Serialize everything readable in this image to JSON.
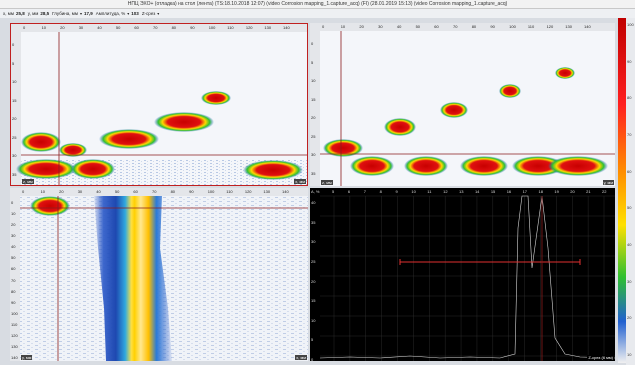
{
  "window": {
    "title": "НПЦ ЭХО+ (отладка) на стол (лента) (TS:18.10.2018 12:07) (video Corrosion mapping_1.capture_acq) (FI) (28.01.2019 15:13) (video Corrosion mapping_1.capture_acq)"
  },
  "toolbar": {
    "x_label": "x, мм",
    "x_value": "25,8",
    "y_label": "y, мм",
    "y_value": "28,5",
    "depth_label": "Глубина, мм",
    "depth_value": "17,9",
    "amp_label": "Амплитуда, %",
    "amp_value": "103",
    "mode_label": "Z-срез"
  },
  "panels": {
    "top_left": {
      "x_ticks": [
        "0",
        "10",
        "20",
        "30",
        "40",
        "50",
        "60",
        "70",
        "80",
        "90",
        "100",
        "110",
        "120",
        "130",
        "140"
      ],
      "x_unit": "x, мм",
      "y_ticks": [
        "0",
        "5",
        "10",
        "15",
        "20",
        "25",
        "30",
        "35"
      ],
      "corner_bl": "z, мм",
      "corner_br": "x, мм"
    },
    "top_right": {
      "x_ticks": [
        "0",
        "10",
        "20",
        "30",
        "40",
        "50",
        "60",
        "70",
        "80",
        "90",
        "100",
        "110",
        "120",
        "130",
        "140"
      ],
      "x_unit": "y, мм",
      "y_ticks": [
        "0",
        "5",
        "10",
        "15",
        "20",
        "25",
        "30",
        "35"
      ],
      "corner_bl": "z, мм",
      "corner_br": "y, мм"
    },
    "bottom_left": {
      "x_ticks": [
        "0",
        "10",
        "20",
        "30",
        "40",
        "50",
        "60",
        "70",
        "80",
        "90",
        "100",
        "110",
        "120",
        "130",
        "140"
      ],
      "y_ticks": [
        "0",
        "10",
        "20",
        "30",
        "40",
        "50",
        "60",
        "70",
        "80",
        "90",
        "100",
        "110",
        "120",
        "130",
        "140"
      ],
      "corner_bl": "y, мм",
      "corner_br": "x, мм"
    },
    "bottom_right": {
      "amp_label": "A, %",
      "x_ticks": [
        "5",
        "6",
        "7",
        "8",
        "9",
        "10",
        "11",
        "12",
        "13",
        "14",
        "15",
        "16",
        "17",
        "18",
        "19",
        "20",
        "21",
        "22"
      ],
      "y_ticks": [
        "40",
        "35",
        "30",
        "25",
        "20",
        "15",
        "10",
        "5",
        "0"
      ],
      "corner_br": "Z-срез (6 мм)"
    }
  },
  "colorbar": {
    "ticks": [
      "100",
      "90",
      "80",
      "70",
      "60",
      "50",
      "40",
      "30",
      "20",
      "10"
    ]
  }
}
